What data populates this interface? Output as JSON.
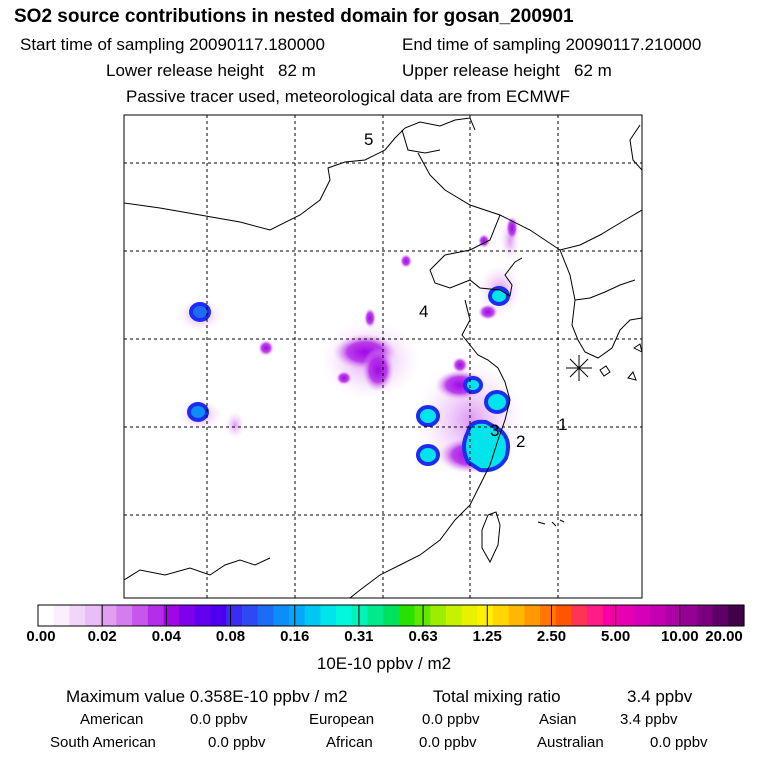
{
  "header": {
    "title": "SO2 source contributions in nested domain for gosan_200901",
    "start_label": "Start time of sampling 20090117.180000",
    "end_label": "End time of sampling 20090117.210000",
    "lower_label": "Lower release height   82 m",
    "upper_label": "Upper release height   62 m",
    "tracer_note": "Passive tracer used, meteorological data are from ECMWF"
  },
  "map": {
    "numbers": [
      "1",
      "2",
      "3",
      "4",
      "5"
    ],
    "release_marker": "receptor-star"
  },
  "colorbar": {
    "ticks": [
      "0.00",
      "0.02",
      "0.04",
      "0.08",
      "0.16",
      "0.31",
      "0.63",
      "1.25",
      "2.50",
      "5.00",
      "10.00",
      "20.00"
    ],
    "colors": [
      "#ffffff",
      "#fbeefd",
      "#f2d6fa",
      "#e9bdf6",
      "#e29ff2",
      "#d57cef",
      "#c855ec",
      "#b52de8",
      "#9f07e7",
      "#7f00ea",
      "#6300ee",
      "#4d00f0",
      "#3a2cf2",
      "#2d49f4",
      "#1c6cf6",
      "#0b8ef8",
      "#00aaf8",
      "#00c8f3",
      "#00e5ec",
      "#00f8dd",
      "#00f2b6",
      "#00ea8c",
      "#00e25f",
      "#27e200",
      "#60e800",
      "#9bee00",
      "#c6f200",
      "#e8f200",
      "#fff200",
      "#ffd600",
      "#ffb800",
      "#ff9900",
      "#ff7700",
      "#ff5500",
      "#ff3355",
      "#ff1c88",
      "#f700a8",
      "#e600b2",
      "#d600b8",
      "#c300b2",
      "#ad00a6",
      "#950095",
      "#7a0080",
      "#5e0066",
      "#40004a"
    ],
    "unit": "10E-10 ppbv / m2"
  },
  "stats": {
    "max_label": "Maximum value  0.358E-10 ppbv / m2",
    "total_label": "Total mixing ratio",
    "total_value": "3.4 ppbv",
    "regions": [
      {
        "name": "American",
        "value": "0.0 ppbv"
      },
      {
        "name": "European",
        "value": "0.0 ppbv"
      },
      {
        "name": "Asian",
        "value": "3.4 ppbv"
      },
      {
        "name": "South American",
        "value": "0.0 ppbv"
      },
      {
        "name": "African",
        "value": "0.0 ppbv"
      },
      {
        "name": "Australian",
        "value": "0.0 ppbv"
      }
    ]
  }
}
